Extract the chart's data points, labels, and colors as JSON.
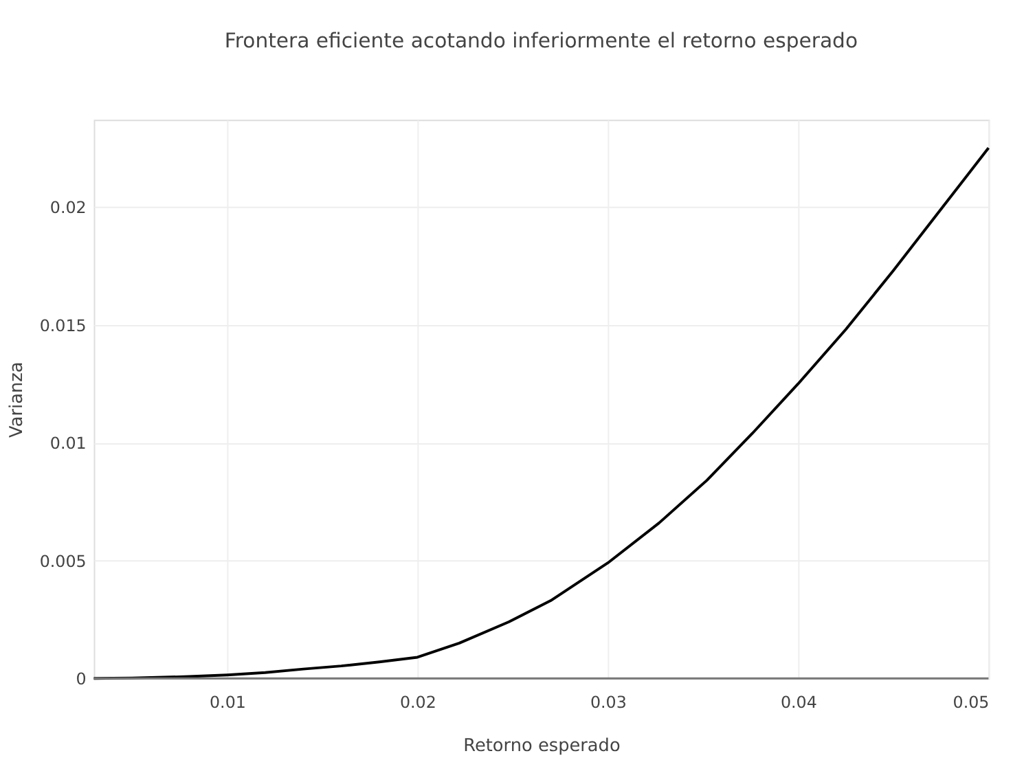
{
  "chart_data": {
    "type": "line",
    "title": "Frontera eficiente acotando inferiormente el retorno esperado",
    "xlabel": "Retorno esperado",
    "ylabel": "Varianza",
    "x": [
      0.003,
      0.005,
      0.008,
      0.01,
      0.012,
      0.014,
      0.016,
      0.018,
      0.02,
      0.0222,
      0.0248,
      0.027,
      0.03,
      0.0327,
      0.0352,
      0.0376,
      0.04,
      0.0425,
      0.045,
      0.0475,
      0.05
    ],
    "series": [
      {
        "color": "#000000",
        "values": [
          0,
          2e-05,
          8e-05,
          0.00015,
          0.00025,
          0.0004,
          0.00053,
          0.0007,
          0.0009,
          0.0015,
          0.0024,
          0.0033,
          0.0049,
          0.0066,
          0.0084,
          0.0104,
          0.0125,
          0.0148,
          0.0173,
          0.0199,
          0.0225
        ]
      }
    ],
    "xlim": [
      0.003,
      0.05
    ],
    "xticks": [
      0.01,
      0.02,
      0.03,
      0.04,
      0.05
    ],
    "ylim": [
      0,
      0.0237
    ],
    "yticks": [
      0,
      0.005,
      0.01,
      0.015,
      0.02
    ],
    "grid": true,
    "legend": false,
    "marker": "none",
    "line_style": "solid"
  }
}
